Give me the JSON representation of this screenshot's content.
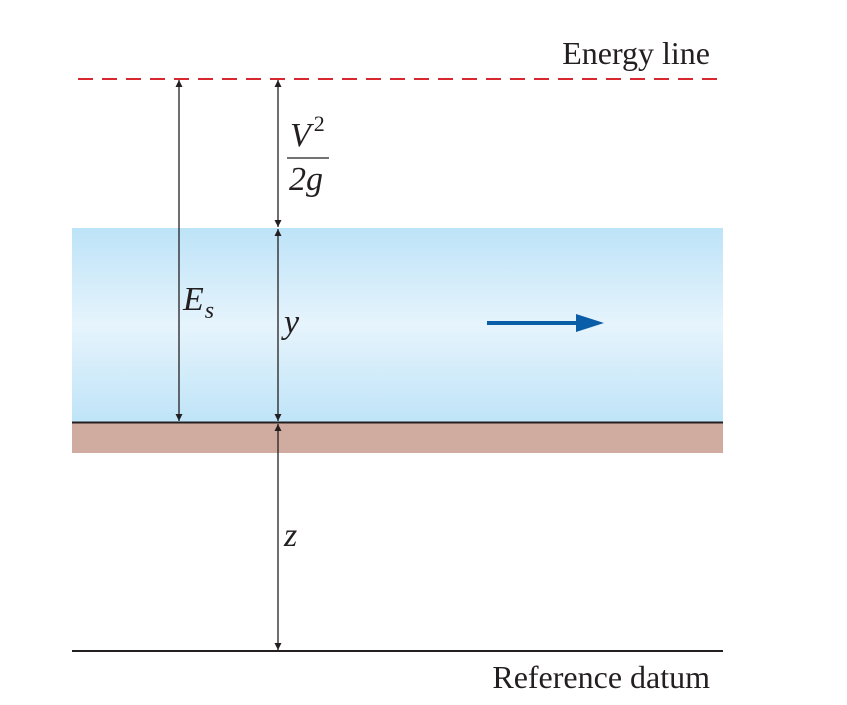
{
  "labels": {
    "energy_line": "Energy line",
    "reference_datum": "Reference datum",
    "specific_energy_symbol": "E",
    "specific_energy_subscript": "s",
    "velocity_head_numerator": "V",
    "velocity_head_exponent": "2",
    "velocity_head_denominator": "2g",
    "depth_symbol": "y",
    "elevation_symbol": "z"
  },
  "colors": {
    "energy_line": "#d7272f",
    "water_top": "#bde3f8",
    "water_mid": "#e6f4fc",
    "water_bottom": "#bfe4f8",
    "channel_bed": "#d0ab9f",
    "flow_arrow": "#0a5ea8",
    "lines": "#231f20",
    "text": "#231f20"
  },
  "icons": {
    "flow_direction": "arrow-right-icon"
  }
}
